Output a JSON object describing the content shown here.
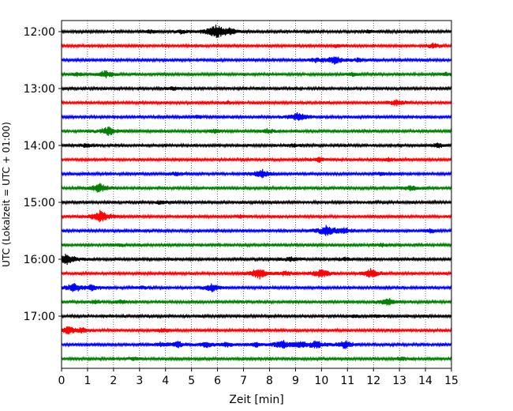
{
  "chart_data": {
    "type": "line",
    "title": "",
    "xlabel": "Zeit  [min]",
    "ylabel": "UTC (Lokalzeit = UTC + 01:00)",
    "xlim": [
      0,
      15
    ],
    "x_ticks": [
      "0",
      "1",
      "2",
      "3",
      "4",
      "5",
      "6",
      "7",
      "8",
      "9",
      "10",
      "11",
      "12",
      "13",
      "14",
      "15"
    ],
    "y_ticks": [
      "12:00",
      "13:00",
      "14:00",
      "15:00",
      "16:00",
      "17:00"
    ],
    "grid": "vertical dotted at each minute",
    "trace_interval_min": 15,
    "trace_colors": [
      "#000000",
      "#ff0000",
      "#0000ff",
      "#008000"
    ],
    "series": [
      {
        "start": "12:00",
        "events": [
          [
            5.95,
            1.0
          ],
          [
            4.6,
            0.3
          ],
          [
            6.5,
            0.35
          ],
          [
            3.4,
            0.25
          ],
          [
            11.8,
            0.25
          ]
        ]
      },
      {
        "start": "12:15",
        "events": [
          [
            14.3,
            0.35
          ],
          [
            10.6,
            0.2
          ]
        ]
      },
      {
        "start": "12:30",
        "events": [
          [
            10.5,
            0.6
          ],
          [
            9.8,
            0.35
          ],
          [
            11.4,
            0.3
          ]
        ]
      },
      {
        "start": "12:45",
        "events": [
          [
            1.7,
            0.55
          ],
          [
            0.6,
            0.25
          ],
          [
            11.2,
            0.25
          ],
          [
            14.8,
            0.25
          ]
        ]
      },
      {
        "start": "13:00",
        "events": [
          [
            4.3,
            0.25
          ]
        ]
      },
      {
        "start": "13:15",
        "events": [
          [
            12.9,
            0.45
          ],
          [
            6.4,
            0.2
          ]
        ]
      },
      {
        "start": "13:30",
        "events": [
          [
            9.1,
            0.7
          ],
          [
            5.2,
            0.2
          ]
        ]
      },
      {
        "start": "13:45",
        "events": [
          [
            1.8,
            0.65
          ],
          [
            7.9,
            0.35
          ],
          [
            5.9,
            0.3
          ]
        ]
      },
      {
        "start": "14:00",
        "events": [
          [
            14.5,
            0.35
          ],
          [
            0.9,
            0.3
          ],
          [
            8.9,
            0.25
          ]
        ]
      },
      {
        "start": "14:15",
        "events": [
          [
            9.9,
            0.35
          ],
          [
            12.6,
            0.25
          ]
        ]
      },
      {
        "start": "14:30",
        "events": [
          [
            7.7,
            0.65
          ],
          [
            4.4,
            0.25
          ],
          [
            12.3,
            0.25
          ]
        ]
      },
      {
        "start": "14:45",
        "events": [
          [
            1.45,
            0.7
          ],
          [
            13.4,
            0.4
          ]
        ]
      },
      {
        "start": "15:00",
        "events": [
          [
            3.8,
            0.25
          ]
        ]
      },
      {
        "start": "15:15",
        "events": [
          [
            1.5,
            0.9
          ],
          [
            6.9,
            0.2
          ]
        ]
      },
      {
        "start": "15:30",
        "events": [
          [
            10.2,
            0.85
          ],
          [
            10.9,
            0.4
          ],
          [
            14.2,
            0.25
          ]
        ]
      },
      {
        "start": "15:45",
        "events": [
          [
            2.3,
            0.2
          ],
          [
            12.3,
            0.25
          ]
        ]
      },
      {
        "start": "16:00",
        "events": [
          [
            0.2,
            0.8
          ],
          [
            8.8,
            0.35
          ],
          [
            10.9,
            0.3
          ]
        ]
      },
      {
        "start": "16:15",
        "events": [
          [
            7.6,
            0.8
          ],
          [
            10.0,
            0.7
          ],
          [
            11.9,
            0.7
          ],
          [
            8.6,
            0.35
          ]
        ]
      },
      {
        "start": "16:30",
        "events": [
          [
            0.45,
            0.7
          ],
          [
            1.2,
            0.45
          ],
          [
            5.8,
            0.6
          ],
          [
            3.1,
            0.25
          ]
        ]
      },
      {
        "start": "16:45",
        "events": [
          [
            12.55,
            0.55
          ],
          [
            1.3,
            0.3
          ],
          [
            2.3,
            0.25
          ]
        ]
      },
      {
        "start": "17:00",
        "events": [
          [
            11.3,
            0.25
          ],
          [
            12.2,
            0.2
          ]
        ]
      },
      {
        "start": "17:15",
        "events": [
          [
            0.25,
            0.6
          ],
          [
            0.8,
            0.35
          ],
          [
            3.9,
            0.3
          ]
        ]
      },
      {
        "start": "17:30",
        "events": [
          [
            8.5,
            0.7
          ],
          [
            9.8,
            0.6
          ],
          [
            10.9,
            0.65
          ],
          [
            4.5,
            0.45
          ],
          [
            5.6,
            0.45
          ],
          [
            6.4,
            0.35
          ],
          [
            9.2,
            0.4
          ],
          [
            3.8,
            0.3
          ],
          [
            7.5,
            0.3
          ]
        ]
      },
      {
        "start": "17:45",
        "events": [
          [
            13.1,
            0.3
          ],
          [
            2.8,
            0.2
          ]
        ]
      }
    ]
  }
}
